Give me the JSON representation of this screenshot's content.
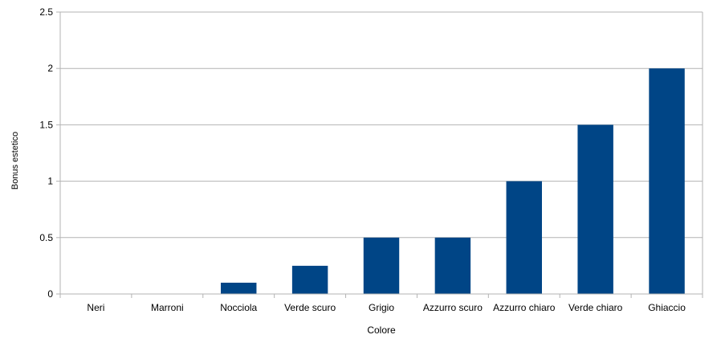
{
  "chart_data": {
    "type": "bar",
    "title": "",
    "xlabel": "Colore",
    "ylabel": "Bonus estetico",
    "categories": [
      "Neri",
      "Marroni",
      "Nocciola",
      "Verde scuro",
      "Grigio",
      "Azzurro scuro",
      "Azzurro chiaro",
      "Verde chiaro",
      "Ghiaccio"
    ],
    "values": [
      0,
      0,
      0.1,
      0.25,
      0.5,
      0.5,
      1,
      1.5,
      2
    ],
    "ylim": [
      0,
      2.5
    ],
    "yticks": [
      "0",
      "0.5",
      "1",
      "1.5",
      "2",
      "2.5"
    ],
    "grid": true,
    "legend": "none",
    "bar_color": "#004586",
    "grid_color": "#b3b3b3"
  }
}
